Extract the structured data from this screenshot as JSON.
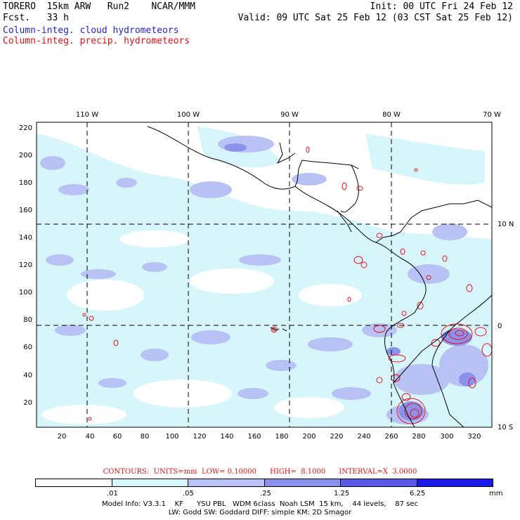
{
  "header": {
    "model": "TORERO  15km ARW   Run2    NCAR/MMM",
    "fcst": "Fcst.   33 h",
    "init": "Init: 00 UTC Fri 24 Feb 12",
    "valid": "Valid: 09 UTC Sat 25 Feb 12 (03 CST Sat 25 Feb 12)",
    "field_cloud": "Column-integ. cloud hydrometeors",
    "field_precip": "Column-integ. precip. hydrometeors"
  },
  "map": {
    "lon_labels": [
      "110 W",
      "100 W",
      "90 W",
      "80 W",
      "70 W"
    ],
    "lat_labels": [
      "10 N",
      "0",
      "10 S"
    ],
    "y_ticks": [
      "220",
      "200",
      "180",
      "160",
      "140",
      "120",
      "100",
      "80",
      "60",
      "40",
      "20"
    ],
    "x_ticks": [
      "20",
      "40",
      "60",
      "80",
      "100",
      "120",
      "140",
      "160",
      "180",
      "200",
      "220",
      "240",
      "260",
      "280",
      "300",
      "320"
    ],
    "colors": {
      "land": "#000000",
      "cloud_low": "#d6f6fb",
      "cloud_mid": "#b8c2f4",
      "cloud_high": "#8a92ec",
      "precip_contour": "#e8101c"
    }
  },
  "contours_line": "CONTOURS:  UNITS=mm  LOW= 0.10000      HIGH=  8.1000      INTERVAL=X  3.0000",
  "legend": {
    "labels": [
      ".01",
      ".05",
      ".25",
      "1.25",
      "6.25"
    ],
    "unit": "mm",
    "colors": [
      "#ffffff",
      "#d6f6fb",
      "#b8c2f4",
      "#8a92ec",
      "#5a5ae6",
      "#1a1ae8"
    ]
  },
  "footer": {
    "line1": "Model Info: V3.3.1    KF      YSU PBL   WDM 6class  Noah LSM  15 km,    44 levels,    87 sec",
    "line2": "LW: Godd SW: Goddard DIFF: simple KM: 2D Smagor"
  }
}
